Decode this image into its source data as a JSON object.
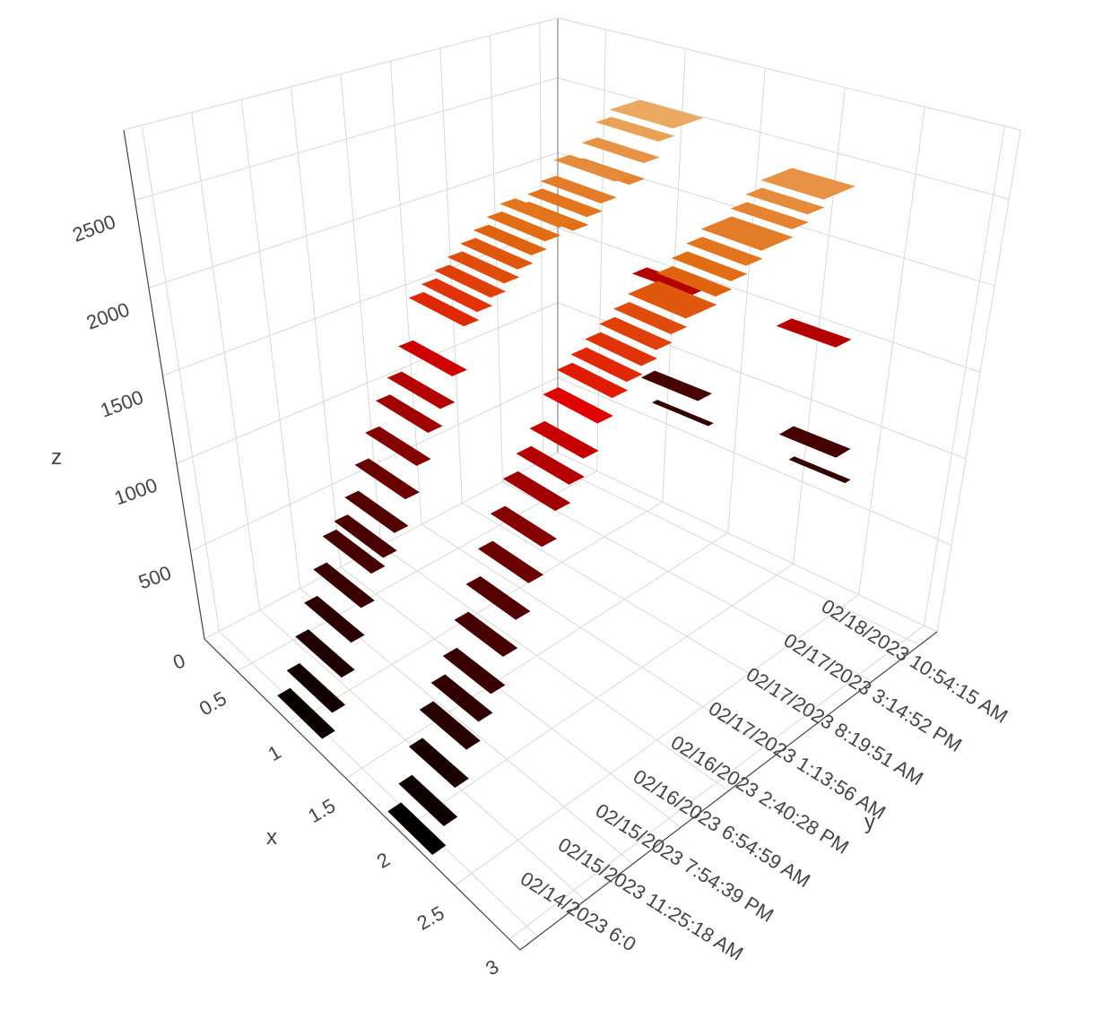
{
  "chart_data": {
    "type": "surface3d",
    "x_title": "x",
    "y_title": "y",
    "z_title": "z",
    "xlim": [
      0.2,
      3.1
    ],
    "xticks": [
      0.5,
      1,
      1.5,
      2,
      2.5,
      3
    ],
    "ylim": [
      0,
      96
    ],
    "yticks": [
      {
        "value": 4,
        "label": "02/14/2023 6:0"
      },
      {
        "value": 15,
        "label": "02/15/2023 11:25:18 AM"
      },
      {
        "value": 26,
        "label": "02/15/2023 7:54:39 PM"
      },
      {
        "value": 37,
        "label": "02/16/2023 6:54:59 AM"
      },
      {
        "value": 48,
        "label": "02/16/2023 2:40:28 PM"
      },
      {
        "value": 59,
        "label": "02/17/2023 1:13:56 AM"
      },
      {
        "value": 70,
        "label": "02/17/2023 8:19:51 AM"
      },
      {
        "value": 81,
        "label": "02/17/2023 3:14:52 PM"
      },
      {
        "value": 92,
        "label": "02/18/2023 10:54:15 AM"
      }
    ],
    "zlim": [
      0,
      2900
    ],
    "zticks": [
      0,
      500,
      1000,
      1500,
      2000,
      2500
    ],
    "grid": true,
    "colorscale": [
      [
        0,
        "#000000"
      ],
      [
        0.35,
        "#5a0000"
      ],
      [
        0.6,
        "#e00000"
      ],
      [
        0.75,
        "#e06a10"
      ],
      [
        1,
        "#f2d39a"
      ]
    ],
    "y": [
      0,
      3,
      6,
      9,
      12,
      15,
      18,
      21,
      24,
      27,
      30,
      33,
      36,
      39,
      42,
      45,
      48,
      51,
      54,
      57,
      60,
      63,
      66,
      69,
      72,
      75,
      78,
      81,
      84,
      87,
      90,
      93,
      96
    ],
    "series": [
      {
        "x": 1.1,
        "values": [
          100,
          200,
          350,
          500,
          650,
          800,
          850,
          950,
          1100,
          1250,
          1400,
          1500,
          1650,
          1900,
          1950,
          2000,
          2050,
          2100,
          2150,
          2200,
          2250,
          2200,
          2250,
          2300,
          2400,
          2350,
          2450,
          2550,
          2600,
          2600,
          1500,
          800,
          600
        ]
      },
      {
        "x": 2.1,
        "values": [
          50,
          150,
          300,
          450,
          550,
          650,
          800,
          950,
          1100,
          1250,
          1400,
          1500,
          1600,
          1750,
          1850,
          1900,
          1950,
          2000,
          2050,
          2100,
          2100,
          2150,
          2200,
          2250,
          2300,
          2300,
          2350,
          2400,
          2450,
          2450,
          1500,
          800,
          600
        ]
      }
    ]
  }
}
